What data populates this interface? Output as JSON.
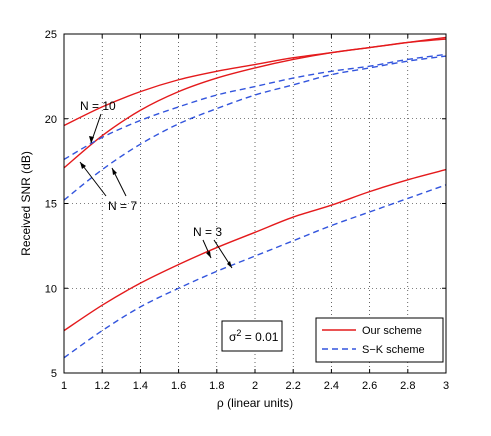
{
  "chart_data": {
    "type": "line",
    "title": "",
    "xlabel": "ρ (linear units)",
    "ylabel": "Received SNR (dB)",
    "xlim": [
      1,
      3
    ],
    "ylim": [
      5,
      25
    ],
    "xticks": [
      1,
      1.2,
      1.4,
      1.6,
      1.8,
      2,
      2.2,
      2.4,
      2.6,
      2.8,
      3
    ],
    "xtick_labels": [
      "1",
      "1.2",
      "1.4",
      "1.6",
      "1.8",
      "2",
      "2.2",
      "2.4",
      "2.6",
      "2.8",
      "3"
    ],
    "yticks": [
      5,
      10,
      15,
      20,
      25
    ],
    "ytick_labels": [
      "5",
      "10",
      "15",
      "20",
      "25"
    ],
    "grid": true,
    "legend_position": "bottom-right",
    "x": [
      1.0,
      1.2,
      1.4,
      1.6,
      1.8,
      2.0,
      2.2,
      2.4,
      2.6,
      2.8,
      3.0
    ],
    "series": [
      {
        "name": "Our scheme",
        "group": "N = 10",
        "color": "#e41a1c",
        "style": "solid",
        "legend": true,
        "values": [
          19.6,
          20.7,
          21.6,
          22.3,
          22.8,
          23.2,
          23.6,
          23.9,
          24.2,
          24.5,
          24.8
        ]
      },
      {
        "name": "Our scheme",
        "group": "N = 7",
        "color": "#e41a1c",
        "style": "solid",
        "legend": false,
        "values": [
          17.1,
          19.0,
          20.5,
          21.6,
          22.4,
          23.0,
          23.5,
          23.9,
          24.2,
          24.5,
          24.7
        ]
      },
      {
        "name": "S-K scheme",
        "group": "N = 10",
        "color": "#3355dd",
        "style": "dashed",
        "legend": false,
        "values": [
          17.6,
          18.9,
          19.9,
          20.7,
          21.4,
          21.9,
          22.4,
          22.8,
          23.1,
          23.5,
          23.8
        ]
      },
      {
        "name": "S-K scheme",
        "group": "N = 7",
        "color": "#3355dd",
        "style": "dashed",
        "legend": true,
        "values": [
          15.2,
          17.0,
          18.5,
          19.7,
          20.6,
          21.4,
          22.0,
          22.6,
          23.0,
          23.4,
          23.7
        ]
      },
      {
        "name": "Our scheme",
        "group": "N = 3",
        "color": "#e41a1c",
        "style": "solid",
        "legend": false,
        "values": [
          7.5,
          9.0,
          10.3,
          11.4,
          12.4,
          13.3,
          14.2,
          14.9,
          15.7,
          16.4,
          17.0
        ]
      },
      {
        "name": "S-K scheme",
        "group": "N = 3",
        "color": "#3355dd",
        "style": "dashed",
        "legend": false,
        "values": [
          5.9,
          7.5,
          8.9,
          10.0,
          11.0,
          11.9,
          12.8,
          13.7,
          14.5,
          15.3,
          16.1
        ]
      }
    ],
    "legend": [
      {
        "label": "Our scheme",
        "color": "#e41a1c",
        "style": "solid"
      },
      {
        "label": "S−K scheme",
        "color": "#3355dd",
        "style": "dashed"
      }
    ],
    "annotations": {
      "n10": "N = 10",
      "n7": "N = 7",
      "n3": "N = 3",
      "sigma_symbol": "σ",
      "sigma_exp": "2",
      "sigma_rest": " = 0.01"
    }
  }
}
